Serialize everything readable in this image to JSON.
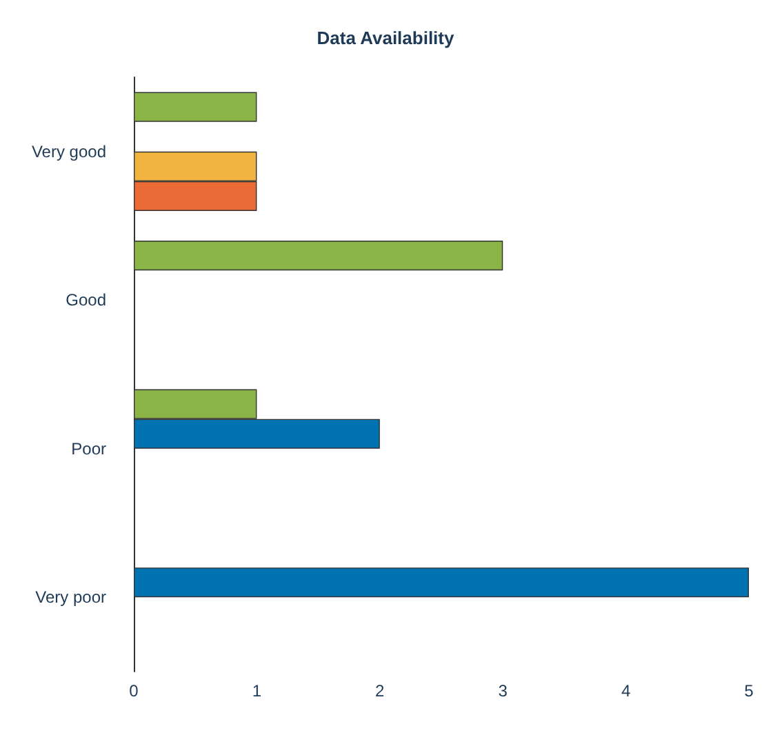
{
  "chart_data": {
    "type": "bar",
    "orientation": "horizontal",
    "title": "Data Availability",
    "categories": [
      "Very good",
      "Good",
      "Poor",
      "Very poor"
    ],
    "series": [
      {
        "color": "#8ab446",
        "values": [
          1,
          3,
          1,
          null
        ]
      },
      {
        "color": "#0073b0",
        "values": [
          null,
          null,
          2,
          5
        ]
      },
      {
        "color": "#f1b43e",
        "values": [
          1,
          null,
          null,
          null
        ]
      },
      {
        "color": "#ec6a36",
        "values": [
          1,
          null,
          null,
          null
        ]
      }
    ],
    "xlim": [
      0,
      5
    ],
    "xticks": [
      0,
      1,
      2,
      3,
      4,
      5
    ],
    "grid": false
  }
}
